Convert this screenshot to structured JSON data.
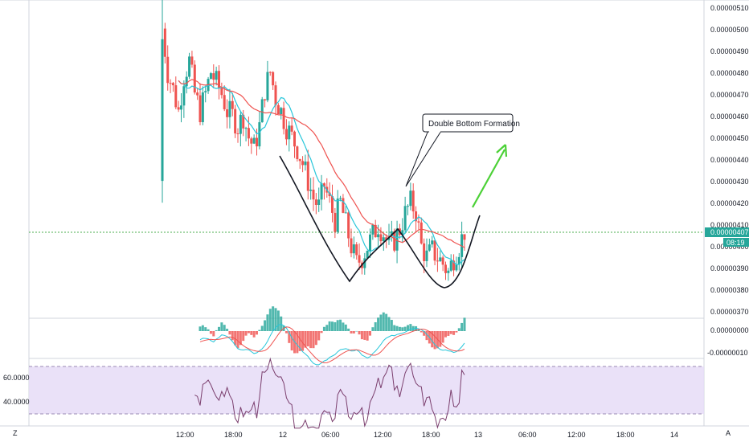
{
  "chart_data": {
    "type": "candlestick",
    "annotation": "Double Bottom Formation",
    "price_axis": {
      "ticks": [
        "0.00000510",
        "0.00000500",
        "0.00000490",
        "0.00000480",
        "0.00000470",
        "0.00000460",
        "0.00000450",
        "0.00000440",
        "0.00000430",
        "0.00000420",
        "0.00000410",
        "0.00000400",
        "0.00000390",
        "0.00000380",
        "0.00000370"
      ],
      "current_price": "0.00000407",
      "countdown": "08:19",
      "ylim": [
        3.67e-06,
        5.13e-06
      ]
    },
    "time_axis": {
      "ticks": [
        "12:00",
        "18:00",
        "12",
        "06:00",
        "12:00",
        "18:00",
        "13",
        "06:00",
        "12:00",
        "18:00",
        "14"
      ],
      "left_label": "Z",
      "right_label": "A"
    },
    "macd_axis": {
      "ticks": [
        "0.00000000",
        "-0.00000010"
      ]
    },
    "rsi_axis": {
      "ticks": [
        "60.0000",
        "40.0000"
      ],
      "band": [
        30,
        70
      ]
    },
    "price_series": {
      "close": [
        5e-06,
        4.8e-06,
        4.72e-06,
        4.62e-06,
        4.78e-06,
        4.85e-06,
        4.7e-06,
        4.62e-06,
        4.7e-06,
        4.8e-06,
        4.75e-06,
        4.7e-06,
        4.62e-06,
        4.6e-06,
        4.55e-06,
        4.6e-06,
        4.5e-06,
        4.45e-06,
        4.55e-06,
        4.72e-06,
        4.8e-06,
        4.68e-06,
        4.62e-06,
        4.55e-06,
        4.5e-06,
        4.45e-06,
        4.38e-06,
        4.3e-06,
        4.22e-06,
        4.18e-06,
        4.28e-06,
        4.2e-06,
        4.12e-06,
        4.2e-06,
        4.1e-06,
        4e-06,
        3.92e-06,
        3.95e-06,
        4e-06,
        4.05e-06,
        4.1e-06,
        4.06e-06,
        4e-06,
        4.03e-06,
        4.08e-06,
        4.15e-06,
        4.2e-06,
        4.16e-06,
        4e-06,
        3.95e-06,
        3.98e-06,
        3.95e-06,
        3.92e-06,
        3.88e-06,
        3.95e-06,
        4e-06,
        4.07e-06
      ]
    }
  }
}
